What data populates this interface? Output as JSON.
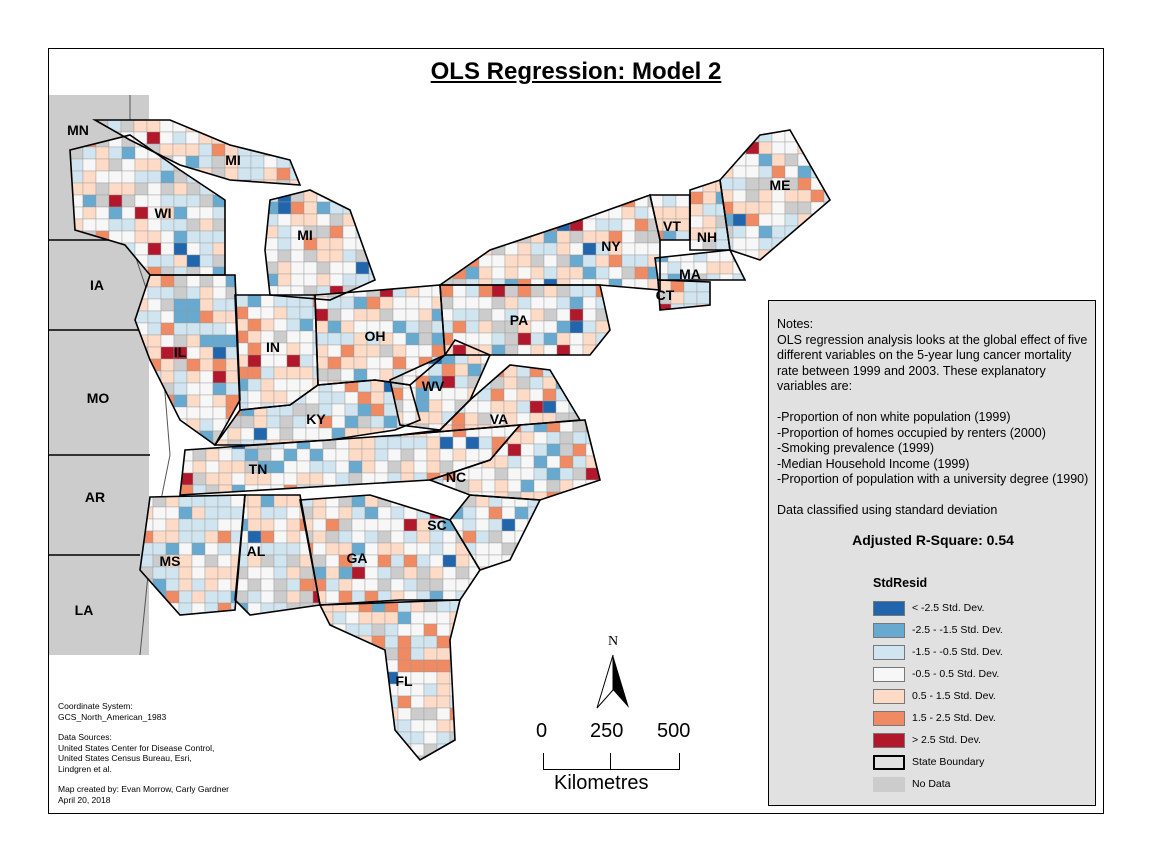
{
  "title": "OLS Regression: Model 2",
  "states": [
    {
      "abbr": "MN"
    },
    {
      "abbr": "IA"
    },
    {
      "abbr": "MO"
    },
    {
      "abbr": "AR"
    },
    {
      "abbr": "LA"
    },
    {
      "abbr": "WI"
    },
    {
      "abbr": "MI"
    },
    {
      "abbr": "MI"
    },
    {
      "abbr": "IL"
    },
    {
      "abbr": "IN"
    },
    {
      "abbr": "OH"
    },
    {
      "abbr": "KY"
    },
    {
      "abbr": "TN"
    },
    {
      "abbr": "WV"
    },
    {
      "abbr": "VA"
    },
    {
      "abbr": "NC"
    },
    {
      "abbr": "SC"
    },
    {
      "abbr": "GA"
    },
    {
      "abbr": "AL"
    },
    {
      "abbr": "MS"
    },
    {
      "abbr": "FL"
    },
    {
      "abbr": "PA"
    },
    {
      "abbr": "NY"
    },
    {
      "abbr": "VT"
    },
    {
      "abbr": "NH"
    },
    {
      "abbr": "ME"
    },
    {
      "abbr": "MA"
    },
    {
      "abbr": "CT"
    }
  ],
  "notes": {
    "heading": "Notes:",
    "intro": "OLS regression analysis looks at the global effect of five different variables on the 5-year lung cancer mortality rate between 1999 and 2003. These explanatory variables are:",
    "variables": [
      "-Proportion of non white population (1999)",
      "-Proportion of homes occupied by renters (2000)",
      "-Smoking prevalence (1999)",
      "-Median Household Income (1999)",
      "-Proportion of population with a university degree (1990)"
    ],
    "classification": "Data classified using standard deviation",
    "r_square": "Adjusted R-Square: 0.54"
  },
  "legend": {
    "title": "StdResid",
    "items": [
      {
        "label": "< -2.5 Std. Dev.",
        "color": "#2166ac"
      },
      {
        "label": "-2.5 - -1.5 Std. Dev.",
        "color": "#67a9cf"
      },
      {
        "label": "-1.5 - -0.5 Std. Dev.",
        "color": "#d1e5f0"
      },
      {
        "label": "-0.5 - 0.5 Std. Dev.",
        "color": "#f7f7f7"
      },
      {
        "label": "0.5 - 1.5 Std. Dev.",
        "color": "#fddbc7"
      },
      {
        "label": "1.5 - 2.5 Std. Dev.",
        "color": "#ef8a62"
      },
      {
        "label": "> 2.5 Std. Dev.",
        "color": "#b2182b"
      }
    ],
    "boundary": "State Boundary",
    "nodata": "No Data",
    "nodata_color": "#cccccc"
  },
  "meta": {
    "coord_label": "Coordinate System:",
    "coord": "GCS_North_American_1983",
    "sources_label": "Data Sources:",
    "sources": [
      "United States Center for Disease Control,",
      "United States Census Bureau, Esri,",
      "Lindgren et al."
    ],
    "created": "Map created by: Evan Morrow, Carly Gardner",
    "date": "April 20, 2018"
  },
  "north": "N",
  "scale": {
    "ticks": [
      "0",
      "250",
      "500"
    ],
    "unit": "Kilometres"
  }
}
